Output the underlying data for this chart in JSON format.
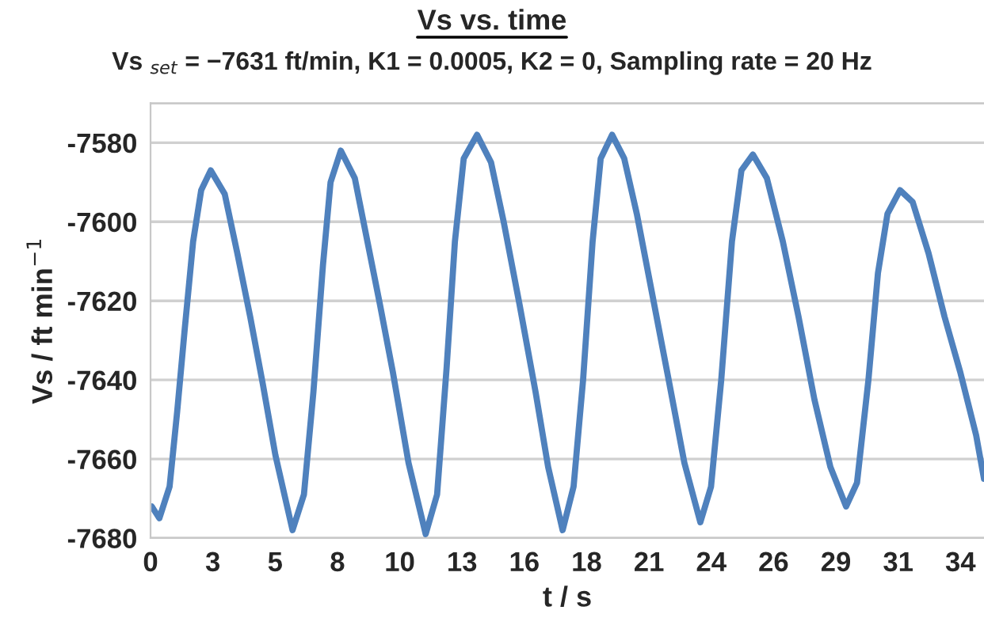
{
  "chart_data": {
    "type": "line",
    "title": "Vs vs. time",
    "subtitle": "Vs $_{set}$ = −7631 ft/min, K1 = 0.0005, K2 = 0, Sampling rate = 20 Hz",
    "xlabel": "t / s",
    "ylabel": "Vs / ft min$^{−1}$",
    "xlim": [
      0,
      35.05
    ],
    "ylim": [
      -7680,
      -7570
    ],
    "xticks": [
      0,
      {
        "value": 2.62,
        "label": "3"
      },
      {
        "value": 5.24,
        "label": "5"
      },
      {
        "value": 7.86,
        "label": "8"
      },
      {
        "value": 10.48,
        "label": "10"
      },
      {
        "value": 13.1,
        "label": "13"
      },
      {
        "value": 15.72,
        "label": "16"
      },
      {
        "value": 18.34,
        "label": "18"
      },
      {
        "value": 20.96,
        "label": "21"
      },
      {
        "value": 23.58,
        "label": "24"
      },
      {
        "value": 26.2,
        "label": "26"
      },
      {
        "value": 28.82,
        "label": "29"
      },
      {
        "value": 31.44,
        "label": "31"
      },
      {
        "value": 34.06,
        "label": "34"
      }
    ],
    "yticks": [
      -7680,
      -7660,
      -7640,
      -7620,
      -7600,
      -7580,
      {
        "value": -7570,
        "label": null
      }
    ],
    "grid": "y",
    "marker": "none",
    "line_style": "solid",
    "series": [
      {
        "color": "#4f81bd",
        "x": [
          0.05,
          0.37,
          0.8,
          1.12,
          1.44,
          1.79,
          2.13,
          2.53,
          3.12,
          3.65,
          4.19,
          4.72,
          5.25,
          5.97,
          6.45,
          6.85,
          7.25,
          7.57,
          8.0,
          8.59,
          9.12,
          9.65,
          10.19,
          10.85,
          11.57,
          12.05,
          12.45,
          12.8,
          13.17,
          13.73,
          14.32,
          14.85,
          15.52,
          16.19,
          16.72,
          17.33,
          17.79,
          18.19,
          18.59,
          18.93,
          19.41,
          19.92,
          20.45,
          21.12,
          21.79,
          22.45,
          23.12,
          23.57,
          24.0,
          24.45,
          24.85,
          25.33,
          25.92,
          26.59,
          27.25,
          27.92,
          28.59,
          29.25,
          29.71,
          30.19,
          30.59,
          30.99,
          31.52,
          32.05,
          32.72,
          33.39,
          34.05,
          34.72,
          35.05
        ],
        "values": [
          -7672,
          -7675,
          -7667,
          -7648,
          -7627,
          -7605,
          -7592,
          -7587,
          -7593,
          -7608,
          -7624,
          -7641,
          -7659,
          -7678,
          -7669,
          -7643,
          -7611,
          -7590,
          -7582,
          -7589,
          -7605,
          -7621,
          -7638,
          -7661,
          -7679,
          -7669,
          -7637,
          -7605,
          -7584,
          -7578,
          -7585,
          -7600,
          -7621,
          -7643,
          -7662,
          -7678,
          -7667,
          -7640,
          -7605,
          -7584,
          -7578,
          -7584,
          -7598,
          -7619,
          -7640,
          -7661,
          -7676,
          -7667,
          -7640,
          -7605,
          -7587,
          -7583,
          -7589,
          -7605,
          -7624,
          -7645,
          -7662,
          -7672,
          -7666,
          -7640,
          -7613,
          -7598,
          -7592,
          -7595,
          -7608,
          -7624,
          -7638,
          -7654,
          -7665
        ]
      }
    ]
  }
}
